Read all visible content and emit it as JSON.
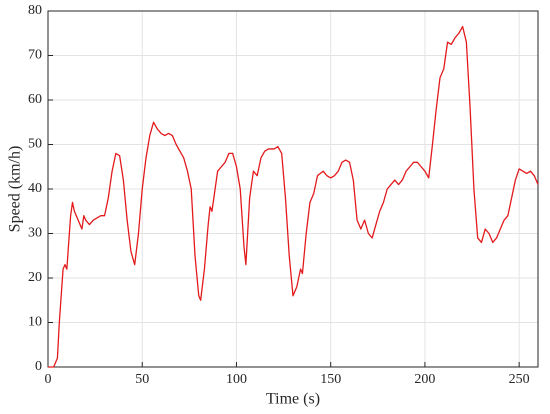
{
  "chart_data": {
    "type": "line",
    "xlabel": "Time (s)",
    "ylabel": "Speed (km/h)",
    "x": [
      0,
      3,
      5,
      6,
      8,
      9,
      10,
      11,
      12,
      13,
      14,
      16,
      18,
      19,
      20,
      22,
      24,
      26,
      28,
      30,
      32,
      34,
      36,
      38,
      40,
      42,
      44,
      46,
      48,
      50,
      52,
      54,
      56,
      58,
      60,
      62,
      64,
      66,
      68,
      70,
      72,
      74,
      76,
      78,
      80,
      81,
      83,
      85,
      86,
      87,
      88,
      90,
      92,
      94,
      96,
      98,
      100,
      102,
      104,
      105,
      107,
      109,
      111,
      113,
      115,
      117,
      120,
      122,
      124,
      126,
      128,
      130,
      132,
      134,
      135,
      137,
      139,
      141,
      143,
      146,
      148,
      150,
      152,
      154,
      156,
      158,
      160,
      162,
      164,
      166,
      168,
      170,
      172,
      174,
      176,
      178,
      180,
      182,
      184,
      186,
      188,
      190,
      192,
      194,
      196,
      198,
      200,
      202,
      204,
      206,
      208,
      210,
      212,
      214,
      216,
      218,
      220,
      222,
      224,
      226,
      228,
      230,
      232,
      234,
      236,
      238,
      240,
      242,
      244,
      246,
      248,
      250,
      252,
      254,
      256,
      258,
      260
    ],
    "values": [
      0,
      0,
      2,
      10,
      22,
      23,
      22,
      28,
      34,
      37,
      35,
      33,
      31,
      34,
      33,
      32,
      33,
      33.5,
      34,
      34,
      38,
      44,
      48,
      47.5,
      42,
      33,
      26,
      23,
      30,
      40,
      47,
      52,
      55,
      53.5,
      52.5,
      52,
      52.5,
      52,
      50,
      48.5,
      47,
      44,
      40,
      25,
      16,
      15,
      22,
      32,
      36,
      35,
      38,
      44,
      45,
      46,
      48,
      48,
      45,
      40,
      27,
      23,
      38,
      44,
      43,
      47,
      48.5,
      49,
      49,
      49.5,
      48,
      38,
      25,
      16,
      18,
      22,
      21,
      30,
      37,
      39,
      43,
      44,
      43,
      42.5,
      43,
      44,
      46,
      46.5,
      46,
      42,
      33,
      31,
      33,
      30,
      29,
      32,
      35,
      37,
      40,
      41,
      42,
      41,
      42,
      44,
      45,
      46,
      46,
      45,
      44,
      42.5,
      50,
      58,
      65,
      67,
      73,
      72.5,
      74,
      75,
      76.5,
      73,
      58,
      40,
      29,
      28,
      31,
      30,
      28,
      29,
      31,
      33,
      34,
      38,
      42,
      44.5,
      44,
      43.5,
      44,
      43,
      41
    ],
    "color": "#e31a1c",
    "xlim": [
      0,
      260
    ],
    "xticks": [
      0,
      50,
      100,
      150,
      200,
      250
    ],
    "ylim": [
      0,
      80
    ],
    "yticks": [
      0,
      10,
      20,
      30,
      40,
      50,
      60,
      70,
      80
    ],
    "grid": true
  }
}
